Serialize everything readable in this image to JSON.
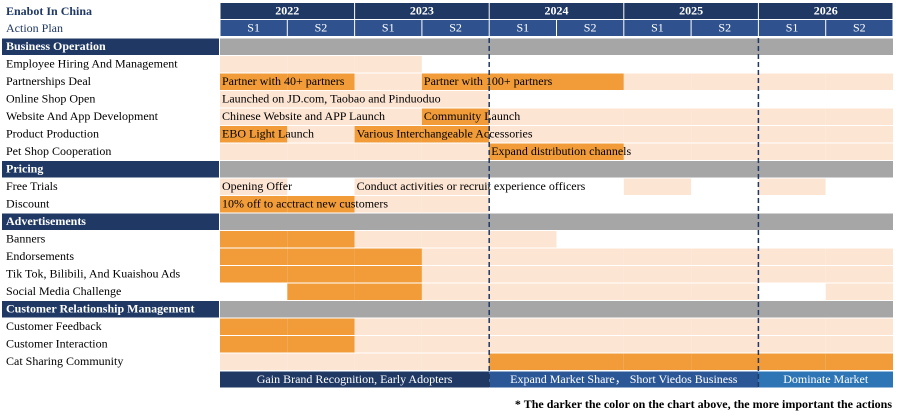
{
  "header": {
    "title": "Enabot In China",
    "subtitle": "Action Plan",
    "years": [
      "2022",
      "2023",
      "2024",
      "2025",
      "2026"
    ],
    "halves": [
      "S1",
      "S2"
    ]
  },
  "palette": [
    "#ffffff",
    "#fde5d3",
    "#f19c38"
  ],
  "section_color": "#a6a6a6",
  "rows": [
    {
      "label": "Business Operation",
      "section": true
    },
    {
      "label": "Employee Hiring And Management",
      "levels": [
        1,
        1,
        1,
        0,
        0,
        0,
        0,
        0,
        0,
        0
      ]
    },
    {
      "label": "Partnerships Deal",
      "levels": [
        2,
        2,
        1,
        2,
        2,
        2,
        1,
        1,
        1,
        1
      ],
      "notes": [
        {
          "col": 0,
          "text": "Partner with 40+ partners"
        },
        {
          "col": 3,
          "text": "Partner with 100+ partners"
        }
      ]
    },
    {
      "label": "Online Shop Open",
      "levels": [
        1,
        1,
        1,
        1,
        0,
        0,
        0,
        0,
        0,
        0
      ],
      "notes": [
        {
          "col": 0,
          "text": "Launched on JD.com, Taobao and Pinduoduo"
        }
      ]
    },
    {
      "label": "Website And App Development",
      "levels": [
        1,
        1,
        1,
        2,
        1,
        1,
        1,
        1,
        1,
        1
      ],
      "notes": [
        {
          "col": 0,
          "text": "Chinese Website and APP Launch"
        },
        {
          "col": 3,
          "text": "Community Launch"
        }
      ]
    },
    {
      "label": "Product Production",
      "levels": [
        2,
        1,
        2,
        2,
        1,
        1,
        1,
        1,
        1,
        1
      ],
      "notes": [
        {
          "col": 0,
          "text": "EBO Light Launch"
        },
        {
          "col": 2,
          "text": "Various Interchangeable  Accessories"
        }
      ]
    },
    {
      "label": "Pet Shop Cooperation",
      "levels": [
        1,
        1,
        1,
        1,
        2,
        2,
        1,
        1,
        1,
        1
      ],
      "notes": [
        {
          "col": 4,
          "text": "Expand distribution channels"
        }
      ]
    },
    {
      "label": "Pricing",
      "section": true
    },
    {
      "label": "Free Trials",
      "levels": [
        1,
        0,
        1,
        1,
        0,
        0,
        1,
        0,
        1,
        0
      ],
      "notes": [
        {
          "col": 0,
          "text": "Opening Offer"
        },
        {
          "col": 2,
          "text": "Conduct activities or recruit experience officers"
        }
      ]
    },
    {
      "label": "Discount",
      "levels": [
        2,
        2,
        1,
        1,
        0,
        0,
        0,
        0,
        0,
        0
      ],
      "notes": [
        {
          "col": 0,
          "text": "10% off to acctract new customers"
        }
      ]
    },
    {
      "label": "Advertisements",
      "section": true
    },
    {
      "label": "Banners",
      "levels": [
        2,
        2,
        1,
        1,
        1,
        0,
        0,
        0,
        0,
        0
      ]
    },
    {
      "label": "Endorsements",
      "levels": [
        2,
        2,
        2,
        1,
        1,
        1,
        1,
        1,
        1,
        1
      ]
    },
    {
      "label": "Tik Tok, Bilibili, And Kuaishou Ads",
      "levels": [
        2,
        2,
        2,
        1,
        1,
        1,
        1,
        1,
        1,
        1
      ]
    },
    {
      "label": "Social Media Challenge",
      "levels": [
        0,
        2,
        2,
        1,
        1,
        1,
        1,
        1,
        0,
        1
      ]
    },
    {
      "label": "Customer Relationship Management",
      "section": true
    },
    {
      "label": "Customer Feedback",
      "levels": [
        2,
        2,
        1,
        1,
        1,
        1,
        1,
        1,
        1,
        1
      ]
    },
    {
      "label": "Customer Interaction",
      "levels": [
        2,
        2,
        1,
        1,
        1,
        1,
        1,
        1,
        1,
        1
      ]
    },
    {
      "label": "Cat Sharing Community",
      "levels": [
        1,
        1,
        1,
        1,
        2,
        2,
        2,
        2,
        2,
        2
      ]
    }
  ],
  "footer": [
    {
      "text": "Gain Brand Recognition, Early Adopters",
      "span": 4,
      "color": "#1f3864"
    },
    {
      "text": "Expand Market Share，  Short Viedos Business",
      "span": 4,
      "color": "#2b5797"
    },
    {
      "text": "Dominate Market",
      "span": 2,
      "color": "#2e75b6"
    }
  ],
  "note": "* The darker the color on the chart above, the more important the actions"
}
